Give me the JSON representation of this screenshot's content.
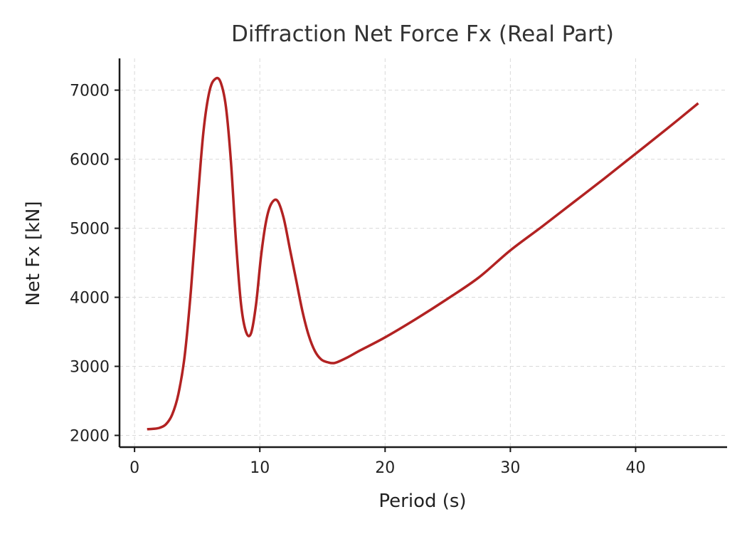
{
  "chart_data": {
    "type": "line",
    "title": "Diffraction Net Force Fx (Real Part)",
    "xlabel": "Period (s)",
    "ylabel": "Net Fx [kN]",
    "xlim": [
      -1.2,
      47.3
    ],
    "ylim": [
      1830,
      7460
    ],
    "xticks": [
      0,
      10,
      20,
      30,
      40
    ],
    "yticks": [
      2000,
      3000,
      4000,
      5000,
      6000,
      7000
    ],
    "grid": true,
    "colors": {
      "line": "#b22222",
      "grid": "#d9d9d9",
      "axis": "#1a1a1a"
    },
    "series": [
      {
        "x": [
          1,
          1.5,
          2,
          2.5,
          3,
          3.5,
          4,
          4.5,
          5,
          5.5,
          6,
          6.5,
          6.9,
          7.3,
          7.7,
          8.1,
          8.5,
          8.9,
          9.3,
          9.7,
          10.1,
          10.5,
          10.9,
          11.4,
          11.9,
          12.4,
          12.9,
          13.4,
          13.9,
          14.4,
          14.9,
          15.4,
          16,
          17,
          18,
          20,
          22.5,
          25,
          27.5,
          30,
          32.5,
          35,
          37.5,
          40,
          42.5,
          45
        ],
        "y": [
          2090,
          2095,
          2110,
          2160,
          2300,
          2600,
          3150,
          4100,
          5300,
          6400,
          7000,
          7170,
          7100,
          6750,
          5950,
          4800,
          3900,
          3500,
          3480,
          3900,
          4600,
          5100,
          5350,
          5400,
          5150,
          4700,
          4250,
          3800,
          3450,
          3220,
          3100,
          3060,
          3050,
          3130,
          3230,
          3420,
          3690,
          3980,
          4290,
          4680,
          5020,
          5370,
          5720,
          6080,
          6440,
          6810
        ]
      }
    ]
  }
}
